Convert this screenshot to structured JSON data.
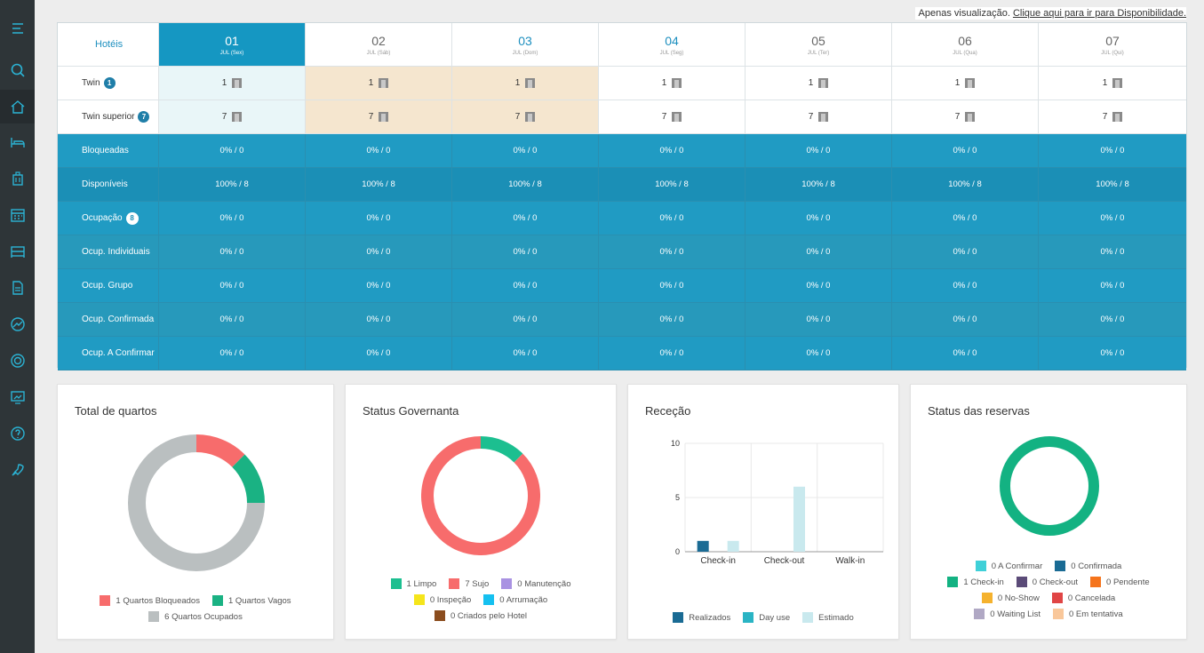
{
  "topnote": {
    "text": "Apenas visualização.",
    "link": "Clique aqui para ir para Disponibilidade."
  },
  "sidebar": {
    "items": [
      "menu-icon",
      "search-icon",
      "home-icon",
      "bed-icon",
      "luggage-icon",
      "calendar-icon",
      "room-icon",
      "document-icon",
      "chart-icon",
      "target-icon",
      "report-icon",
      "help-icon",
      "rocket-icon"
    ]
  },
  "grid": {
    "header_label": "Hotéis",
    "days": [
      {
        "num": "01",
        "sub": "JUL (Sex)"
      },
      {
        "num": "02",
        "sub": "JUL (Sáb)"
      },
      {
        "num": "03",
        "sub": "JUL (Dom)"
      },
      {
        "num": "04",
        "sub": "JUL (Seg)"
      },
      {
        "num": "05",
        "sub": "JUL (Ter)"
      },
      {
        "num": "06",
        "sub": "JUL (Qua)"
      },
      {
        "num": "07",
        "sub": "JUL (Qui)"
      }
    ],
    "rooms": [
      {
        "label": "Twin",
        "badge": "1",
        "values": [
          "1",
          "1",
          "1",
          "1",
          "1",
          "1",
          "1"
        ]
      },
      {
        "label": "Twin superior",
        "badge": "7",
        "values": [
          "7",
          "7",
          "7",
          "7",
          "7",
          "7",
          "7"
        ]
      }
    ],
    "stats": [
      {
        "label": "Bloqueadas",
        "badge": "",
        "values": [
          "0% / 0",
          "0% / 0",
          "0% / 0",
          "0% / 0",
          "0% / 0",
          "0% / 0",
          "0% / 0"
        ]
      },
      {
        "label": "Disponíveis",
        "badge": "",
        "values": [
          "100% / 8",
          "100% / 8",
          "100% / 8",
          "100% / 8",
          "100% / 8",
          "100% / 8",
          "100% / 8"
        ]
      },
      {
        "label": "Ocupação",
        "badge": "8",
        "values": [
          "0% / 0",
          "0% / 0",
          "0% / 0",
          "0% / 0",
          "0% / 0",
          "0% / 0",
          "0% / 0"
        ]
      },
      {
        "label": "Ocup. Individuais",
        "badge": "",
        "values": [
          "0% / 0",
          "0% / 0",
          "0% / 0",
          "0% / 0",
          "0% / 0",
          "0% / 0",
          "0% / 0"
        ]
      },
      {
        "label": "Ocup. Grupo",
        "badge": "",
        "values": [
          "0% / 0",
          "0% / 0",
          "0% / 0",
          "0% / 0",
          "0% / 0",
          "0% / 0",
          "0% / 0"
        ]
      },
      {
        "label": "Ocup. Confirmada",
        "badge": "",
        "values": [
          "0% / 0",
          "0% / 0",
          "0% / 0",
          "0% / 0",
          "0% / 0",
          "0% / 0",
          "0% / 0"
        ]
      },
      {
        "label": "Ocup. A Confirmar",
        "badge": "",
        "values": [
          "0% / 0",
          "0% / 0",
          "0% / 0",
          "0% / 0",
          "0% / 0",
          "0% / 0",
          "0% / 0"
        ]
      }
    ]
  },
  "cards": {
    "total": {
      "title": "Total de quartos",
      "legend": [
        {
          "label": "1 Quartos Bloqueados",
          "color": "#f76c6c"
        },
        {
          "label": "1 Quartos Vagos",
          "color": "#1ab283"
        },
        {
          "label": "6 Quartos Ocupados",
          "color": "#babfc0"
        }
      ]
    },
    "governanta": {
      "title": "Status Governanta",
      "legend": [
        {
          "label": "1 Limpo",
          "color": "#1cbf90"
        },
        {
          "label": "7 Sujo",
          "color": "#f76c6c"
        },
        {
          "label": "0 Manutenção",
          "color": "#a992e2"
        },
        {
          "label": "0 Inspeção",
          "color": "#f5e51b"
        },
        {
          "label": "0 Arrumação",
          "color": "#15c0f0"
        },
        {
          "label": "0 Criados pelo Hotel",
          "color": "#8b4d1e"
        }
      ]
    },
    "rececao": {
      "title": "Receção",
      "legend": [
        {
          "label": "Realizados",
          "color": "#1a6b94"
        },
        {
          "label": "Day use",
          "color": "#2ab4c4"
        },
        {
          "label": "Estimado",
          "color": "#c9e9ee"
        }
      ]
    },
    "reservas": {
      "title": "Status das reservas",
      "legend": [
        {
          "label": "0 A Confirmar",
          "color": "#3fd0d8"
        },
        {
          "label": "0 Confirmada",
          "color": "#1a6b94"
        },
        {
          "label": "1 Check-in",
          "color": "#13b282"
        },
        {
          "label": "0 Check-out",
          "color": "#5b4b78"
        },
        {
          "label": "0 Pendente",
          "color": "#f5741c"
        },
        {
          "label": "0 No-Show",
          "color": "#f5b22e"
        },
        {
          "label": "0 Cancelada",
          "color": "#e04545"
        },
        {
          "label": "0 Waiting List",
          "color": "#b0a8c4"
        },
        {
          "label": "0 Em tentativa",
          "color": "#f9c79a"
        }
      ]
    }
  },
  "chart_data": [
    {
      "type": "pie",
      "categories": [
        "Quartos Bloqueados",
        "Quartos Vagos",
        "Quartos Ocupados"
      ],
      "values": [
        1,
        1,
        6
      ]
    },
    {
      "type": "pie",
      "categories": [
        "Limpo",
        "Sujo",
        "Manutenção",
        "Inspeção",
        "Arrumação",
        "Criados pelo Hotel"
      ],
      "values": [
        1,
        7,
        0,
        0,
        0,
        0
      ]
    },
    {
      "type": "bar",
      "categories": [
        "Check-in",
        "Check-out",
        "Walk-in"
      ],
      "ylim": [
        0,
        10
      ],
      "yticks": [
        0,
        5,
        10
      ],
      "series": [
        {
          "name": "Realizados",
          "values": [
            1,
            0,
            0
          ]
        },
        {
          "name": "Day use",
          "values": [
            0,
            0,
            0
          ]
        },
        {
          "name": "Estimado",
          "values": [
            1,
            6,
            0
          ]
        }
      ]
    },
    {
      "type": "pie",
      "categories": [
        "A Confirmar",
        "Confirmada",
        "Check-in",
        "Check-out",
        "Pendente",
        "No-Show",
        "Cancelada",
        "Waiting List",
        "Em tentativa"
      ],
      "values": [
        0,
        0,
        1,
        0,
        0,
        0,
        0,
        0,
        0
      ]
    }
  ]
}
